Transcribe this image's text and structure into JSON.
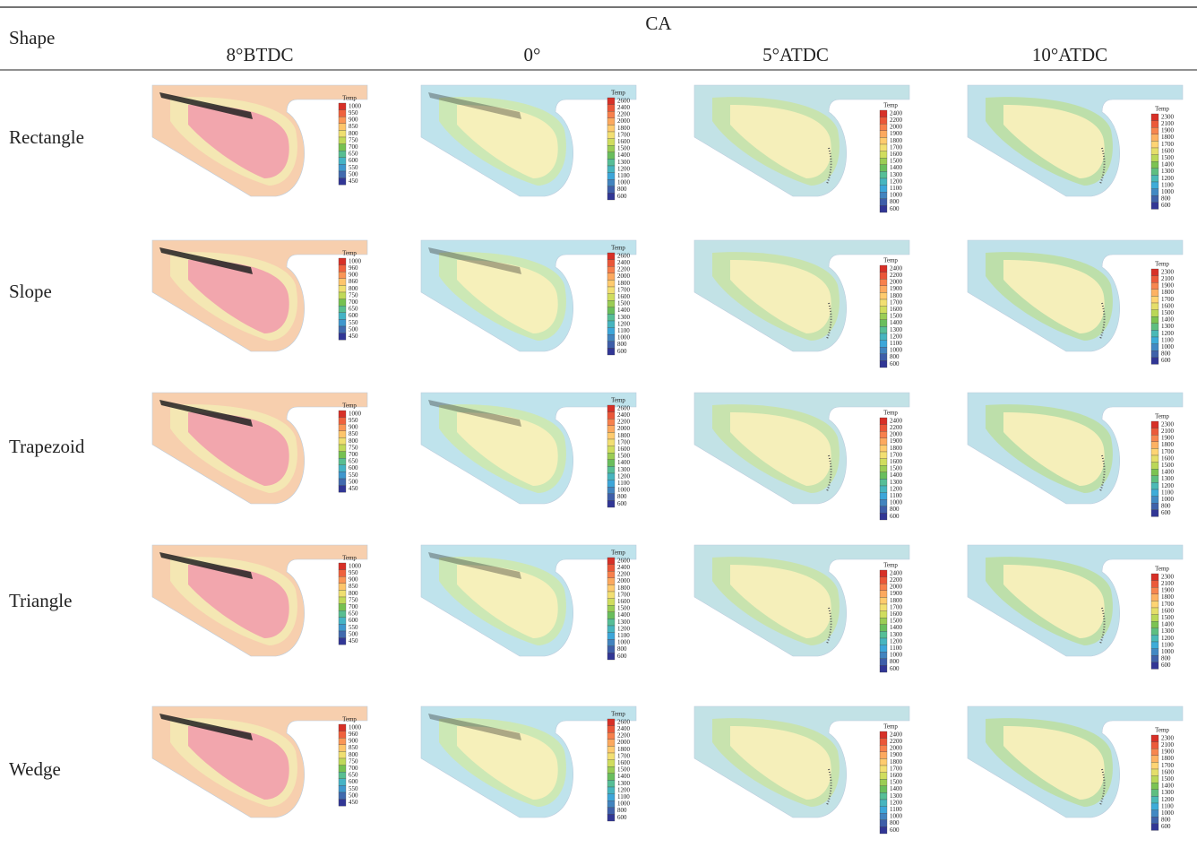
{
  "table": {
    "header": {
      "shape_label": "Shape",
      "group_label": "CA",
      "columns": [
        "8°BTDC",
        "0°",
        "5°ATDC",
        "10°ATDC"
      ]
    },
    "rows": [
      {
        "label": "Rectangle",
        "cells": [
          {
            "legend_title": "Temp",
            "legend_labels": [
              1000,
              950,
              900,
              850,
              800,
              750,
              700,
              650,
              600,
              550,
              500,
              450
            ]
          },
          {
            "legend_title": "Temp",
            "legend_labels": [
              2600,
              2400,
              2200,
              2000,
              1800,
              1700,
              1600,
              1500,
              1400,
              1300,
              1200,
              1100,
              1000,
              800,
              600
            ]
          },
          {
            "legend_title": "Temp",
            "legend_labels": [
              2400,
              2200,
              2000,
              1900,
              1800,
              1700,
              1600,
              1500,
              1400,
              1300,
              1200,
              1100,
              1000,
              800,
              600
            ]
          },
          {
            "legend_title": "Temp",
            "legend_labels": [
              2300,
              2100,
              1900,
              1800,
              1700,
              1600,
              1500,
              1400,
              1300,
              1200,
              1100,
              1000,
              800,
              600
            ]
          }
        ]
      },
      {
        "label": "Slope",
        "cells": [
          {
            "legend_title": "Temp",
            "legend_labels": [
              1000,
              960,
              900,
              860,
              800,
              750,
              700,
              650,
              600,
              550,
              500,
              450
            ]
          },
          {
            "legend_title": "Temp",
            "legend_labels": [
              2600,
              2400,
              2200,
              2000,
              1800,
              1700,
              1600,
              1500,
              1400,
              1300,
              1200,
              1100,
              1000,
              800,
              600
            ]
          },
          {
            "legend_title": "Temp",
            "legend_labels": [
              2400,
              2200,
              2000,
              1900,
              1800,
              1700,
              1600,
              1500,
              1400,
              1300,
              1200,
              1100,
              1000,
              800,
              600
            ]
          },
          {
            "legend_title": "Temp",
            "legend_labels": [
              2300,
              2100,
              1900,
              1800,
              1700,
              1600,
              1500,
              1400,
              1300,
              1200,
              1100,
              1000,
              800,
              600
            ]
          }
        ]
      },
      {
        "label": "Trapezoid",
        "cells": [
          {
            "legend_title": "Temp",
            "legend_labels": [
              1000,
              950,
              900,
              850,
              800,
              750,
              700,
              650,
              600,
              550,
              500,
              450
            ]
          },
          {
            "legend_title": "Temp",
            "legend_labels": [
              2600,
              2400,
              2200,
              2000,
              1800,
              1700,
              1600,
              1500,
              1400,
              1300,
              1200,
              1100,
              1000,
              800,
              600
            ]
          },
          {
            "legend_title": "Temp",
            "legend_labels": [
              2400,
              2200,
              2000,
              1900,
              1800,
              1700,
              1600,
              1500,
              1400,
              1300,
              1200,
              1100,
              1000,
              800,
              600
            ]
          },
          {
            "legend_title": "Temp",
            "legend_labels": [
              2300,
              2100,
              1900,
              1800,
              1700,
              1600,
              1500,
              1400,
              1300,
              1200,
              1100,
              1000,
              800,
              600
            ]
          }
        ]
      },
      {
        "label": "Triangle",
        "cells": [
          {
            "legend_title": "Temp",
            "legend_labels": [
              1000,
              950,
              900,
              850,
              800,
              750,
              700,
              650,
              600,
              550,
              500,
              450
            ]
          },
          {
            "legend_title": "Temp",
            "legend_labels": [
              2600,
              2400,
              2200,
              2000,
              1800,
              1700,
              1600,
              1500,
              1400,
              1300,
              1200,
              1100,
              1000,
              800,
              600
            ]
          },
          {
            "legend_title": "Temp",
            "legend_labels": [
              2400,
              2200,
              2000,
              1900,
              1800,
              1700,
              1600,
              1500,
              1400,
              1300,
              1200,
              1100,
              1000,
              800,
              600
            ]
          },
          {
            "legend_title": "Temp",
            "legend_labels": [
              2300,
              2100,
              1900,
              1800,
              1700,
              1600,
              1500,
              1400,
              1300,
              1200,
              1100,
              1000,
              800,
              600
            ]
          }
        ]
      },
      {
        "label": "Wedge",
        "cells": [
          {
            "legend_title": "Temp",
            "legend_labels": [
              1000,
              960,
              900,
              850,
              800,
              750,
              700,
              650,
              600,
              550,
              500,
              450
            ]
          },
          {
            "legend_title": "Temp",
            "legend_labels": [
              2600,
              2400,
              2200,
              2000,
              1800,
              1700,
              1600,
              1500,
              1400,
              1300,
              1200,
              1100,
              1000,
              800,
              600
            ]
          },
          {
            "legend_title": "Temp",
            "legend_labels": [
              2400,
              2200,
              2000,
              1900,
              1800,
              1700,
              1600,
              1500,
              1400,
              1300,
              1200,
              1100,
              1000,
              800,
              600
            ]
          },
          {
            "legend_title": "Temp",
            "legend_labels": [
              2300,
              2100,
              1900,
              1800,
              1700,
              1600,
              1500,
              1400,
              1300,
              1200,
              1100,
              1000,
              800,
              600
            ]
          }
        ]
      }
    ]
  }
}
